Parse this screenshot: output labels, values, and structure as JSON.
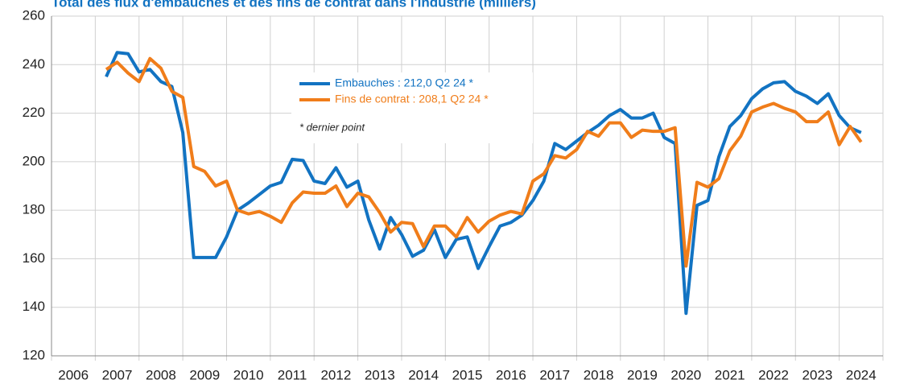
{
  "chart_data": {
    "type": "line",
    "title": "Total des flux d'embauches et des fins de contrat dans l'industrie (milliers)",
    "categories": [
      "2006",
      "2007",
      "2008",
      "2009",
      "2010",
      "2011",
      "2012",
      "2013",
      "2014",
      "2015",
      "2016",
      "2017",
      "2018",
      "2019",
      "2020",
      "2021",
      "2022",
      "2023",
      "2024"
    ],
    "xlim": [
      2006,
      2025
    ],
    "x": [
      2007.25,
      2007.5,
      2007.75,
      2008,
      2008.25,
      2008.5,
      2008.75,
      2009,
      2009.25,
      2009.5,
      2009.75,
      2010,
      2010.25,
      2010.5,
      2010.75,
      2011,
      2011.25,
      2011.5,
      2011.75,
      2012,
      2012.25,
      2012.5,
      2012.75,
      2013,
      2013.25,
      2013.5,
      2013.75,
      2014,
      2014.25,
      2014.5,
      2014.75,
      2015,
      2015.25,
      2015.5,
      2015.75,
      2016,
      2016.25,
      2016.5,
      2016.75,
      2017,
      2017.25,
      2017.5,
      2017.75,
      2018,
      2018.25,
      2018.5,
      2018.75,
      2019,
      2019.25,
      2019.5,
      2019.75,
      2020,
      2020.25,
      2020.5,
      2020.75,
      2021,
      2021.25,
      2021.5,
      2021.75,
      2022,
      2022.25,
      2022.5,
      2022.75,
      2023,
      2023.25,
      2023.5,
      2023.75,
      2024,
      2024.25,
      2024.5
    ],
    "series": [
      {
        "name": "Embauches : 212,0 Q2 24 *",
        "color": "#1273c2",
        "values": [
          235,
          245,
          244.5,
          237,
          238,
          233,
          231,
          212,
          160.5,
          160.5,
          160.5,
          169,
          180,
          183,
          186.5,
          190,
          191.5,
          201,
          200.5,
          192,
          191,
          197.5,
          189.5,
          192,
          176,
          164,
          177,
          170,
          161,
          163.5,
          172,
          160.5,
          168,
          169,
          156,
          165,
          173.5,
          175,
          178,
          184,
          192,
          207.5,
          205,
          208.5,
          212,
          215,
          219,
          221.5,
          218,
          218,
          220,
          210,
          207.5,
          137.5,
          182,
          184,
          202,
          214.5,
          219,
          226,
          230,
          232.5,
          233,
          229,
          227,
          224,
          228,
          219,
          214,
          212.0
        ]
      },
      {
        "name": "Fins de contrat : 208,1 Q2 24 *",
        "color": "#f07d1a",
        "values": [
          238,
          241,
          236.5,
          233,
          242.5,
          238.5,
          229,
          226.5,
          198,
          196,
          190,
          192,
          180,
          178.5,
          179.5,
          177.5,
          175,
          183,
          187.5,
          187,
          187,
          190,
          181.5,
          187,
          185.5,
          179,
          171,
          175,
          174.5,
          165,
          173.5,
          173.5,
          169,
          177,
          171,
          175.5,
          178,
          179.5,
          178.5,
          192,
          195,
          202.5,
          201.5,
          205,
          212.5,
          210.5,
          216,
          216,
          210,
          213,
          212.5,
          212.5,
          214,
          157,
          191.5,
          189.5,
          193,
          204.5,
          210.5,
          220.5,
          222.5,
          224,
          222,
          220.5,
          216.5,
          216.5,
          220.5,
          207,
          214.5,
          208.1
        ]
      }
    ],
    "annotation": "* dernier point",
    "ylim": [
      120,
      260
    ],
    "yticks": [
      120,
      140,
      160,
      180,
      200,
      220,
      240,
      260
    ],
    "grid": true
  }
}
